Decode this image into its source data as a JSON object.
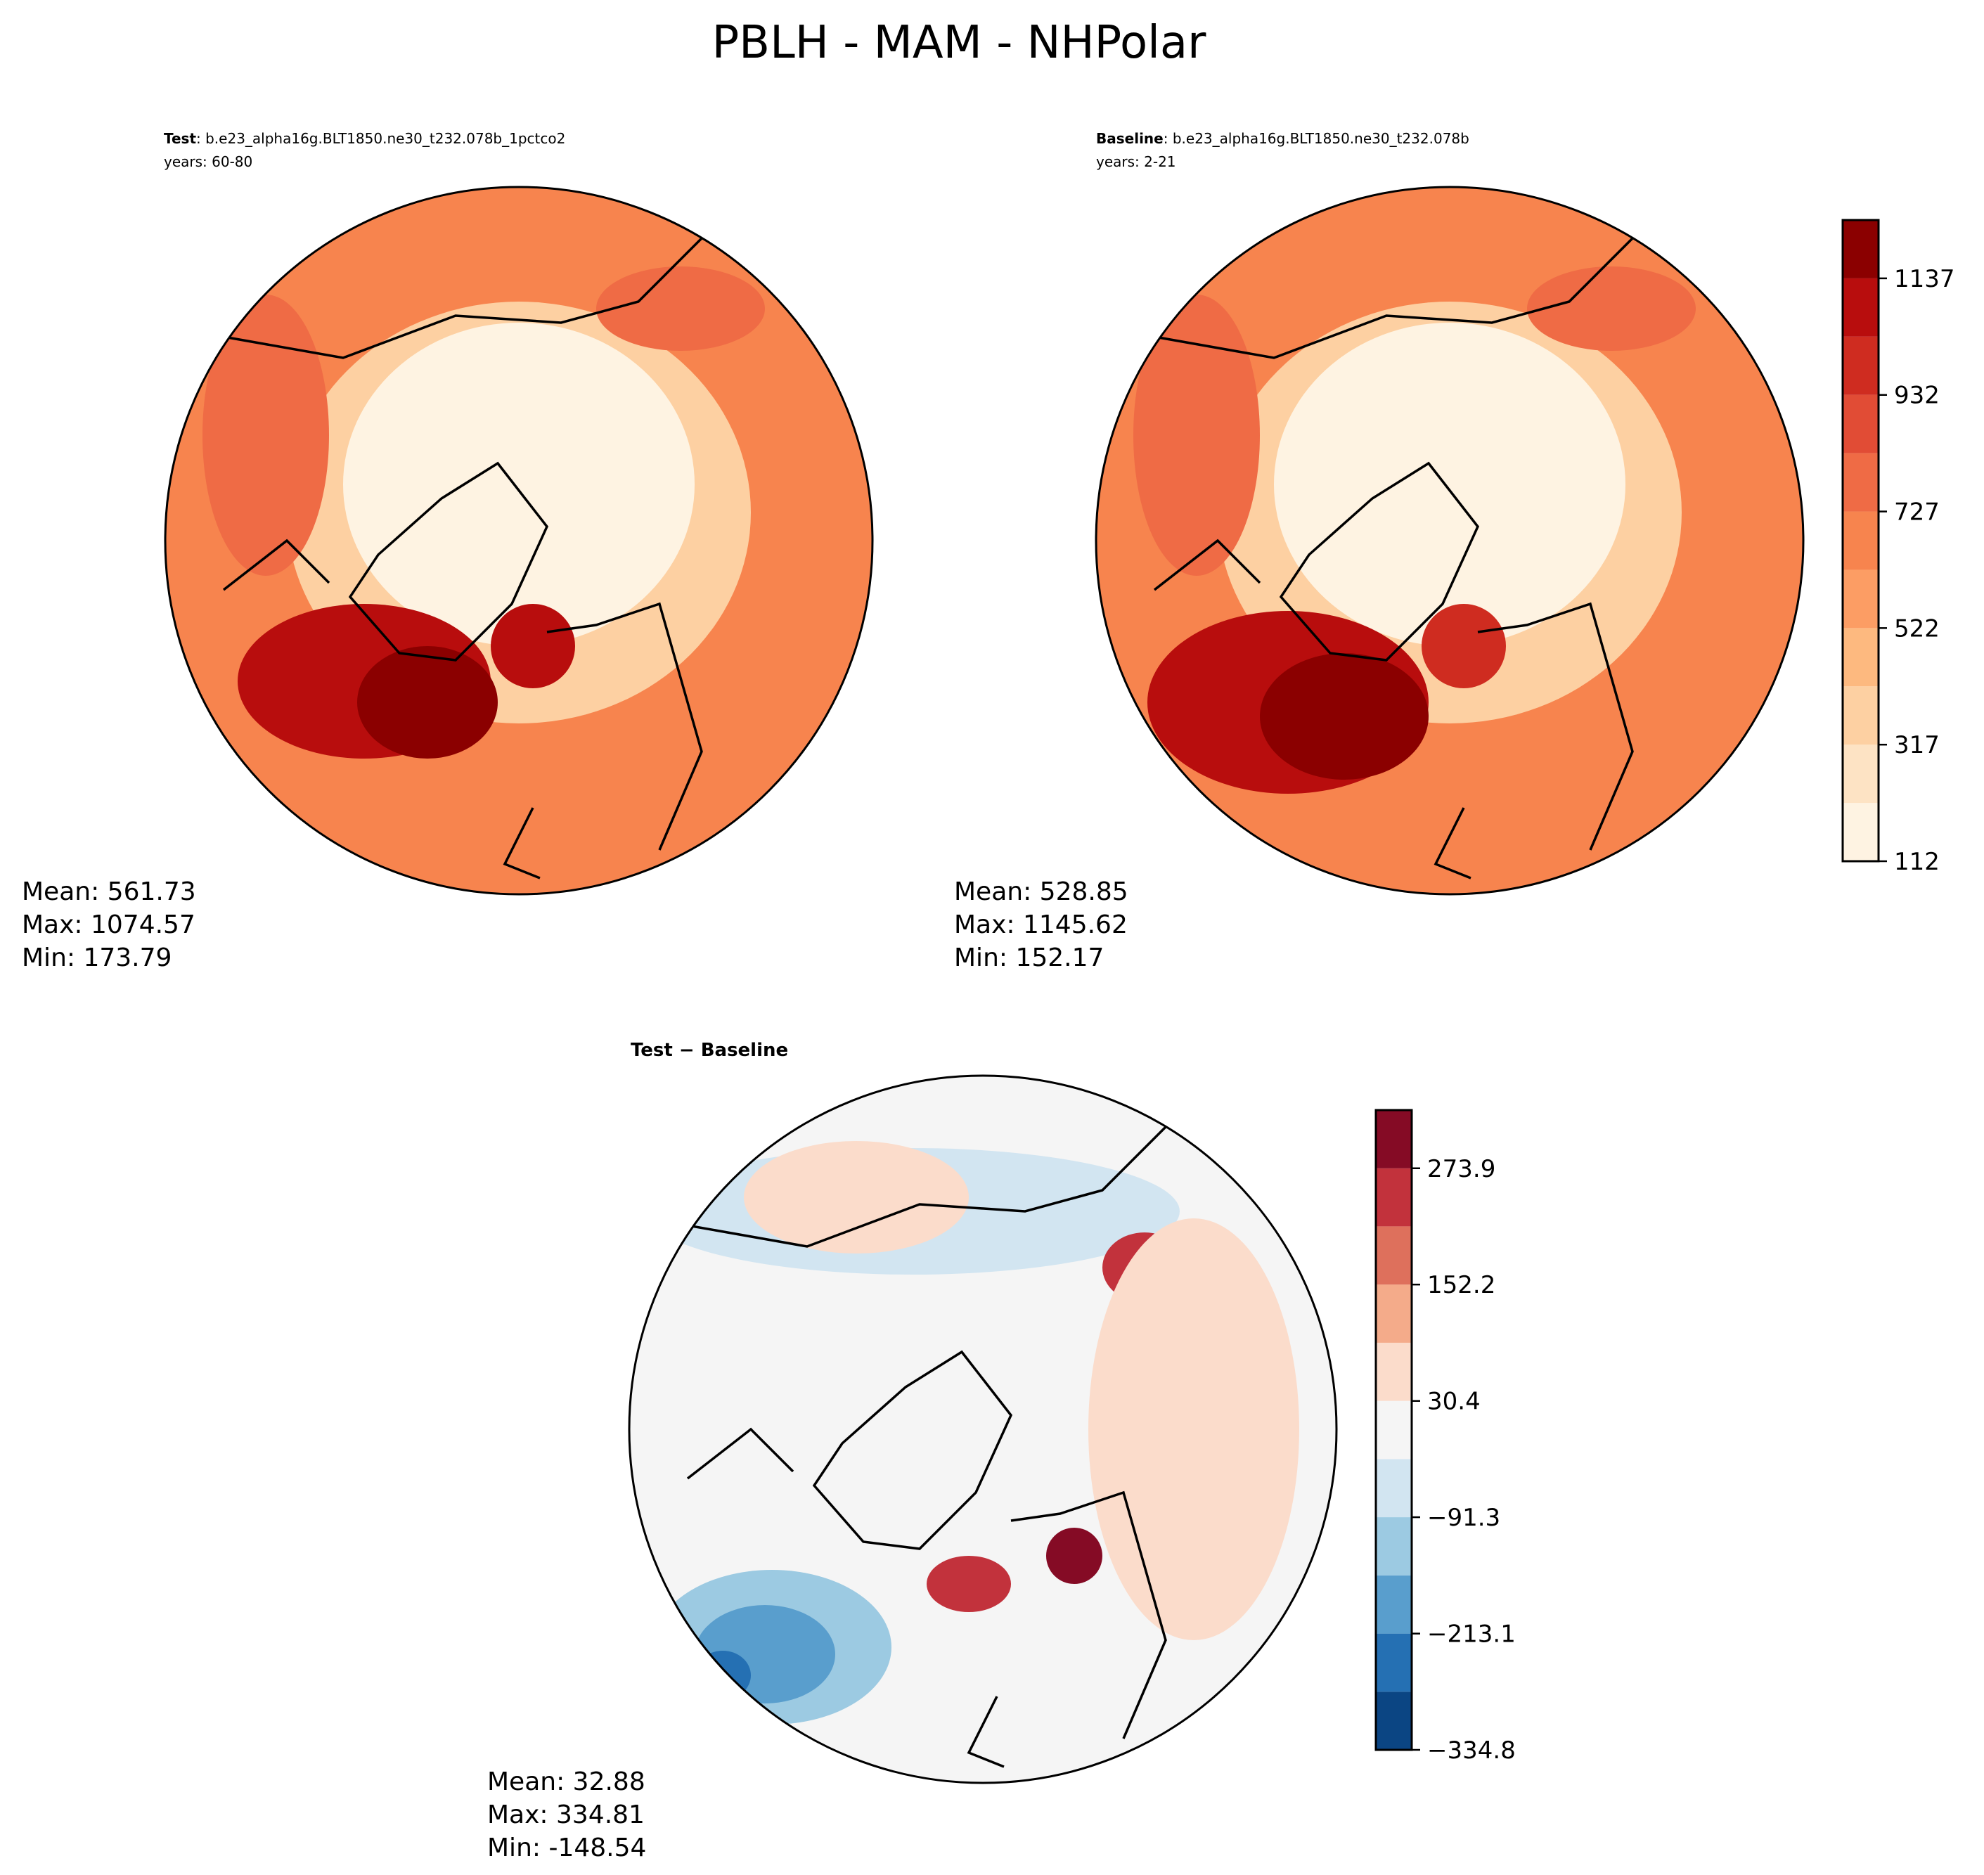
{
  "title": "PBLH - MAM - NHPolar",
  "panels": [
    {
      "case_label": "Test",
      "case_name": ": b.e23_alpha16g.BLT1850.ne30_t232.078b_1pctco2",
      "years": "years: 60-80",
      "stats": [
        "Mean: 561.73",
        "Max: 1074.57",
        "Min: 173.79"
      ]
    },
    {
      "case_label": "Baseline",
      "case_name": ": b.e23_alpha16g.BLT1850.ne30_t232.078b",
      "years": "years: 2-21",
      "stats": [
        "Mean: 528.85",
        "Max: 1145.62",
        "Min: 152.17"
      ]
    },
    {
      "case_label": "Test − Baseline",
      "stats": [
        "Mean: 32.88",
        "Max: 334.81",
        "Min: -148.54"
      ]
    }
  ],
  "colorbars": [
    {
      "levels": [
        112,
        214.5,
        317,
        419.5,
        522,
        624.5,
        727,
        829.5,
        932,
        1034.5,
        1137,
        1239.5
      ],
      "colors": [
        "#fef3e2",
        "#fde3c4",
        "#fdd0a2",
        "#fdb97f",
        "#fc9d64",
        "#f7844e",
        "#ef6b45",
        "#e14c35",
        "#cf2c20",
        "#b80d0d",
        "#8b0000"
      ],
      "ticks": [
        112,
        317,
        522,
        727,
        932,
        1137
      ]
    },
    {
      "levels": [
        -334.8,
        -273.9,
        -213.1,
        -152.2,
        -91.3,
        -30.4,
        30.4,
        91.3,
        152.2,
        213.1,
        273.9,
        334.8
      ],
      "colors": [
        "#0b4583",
        "#2570b3",
        "#599ecd",
        "#9ccae2",
        "#d2e5f1",
        "#f5f5f5",
        "#fbdccb",
        "#f4ab8a",
        "#de705c",
        "#c2323c",
        "#850b25"
      ],
      "ticks": [
        {
          "value": -334.8,
          "label": "−334.8"
        },
        {
          "value": -213.1,
          "label": "−213.1"
        },
        {
          "value": -91.3,
          "label": "−91.3"
        },
        30.4,
        152.2,
        273.9
      ]
    }
  ]
}
